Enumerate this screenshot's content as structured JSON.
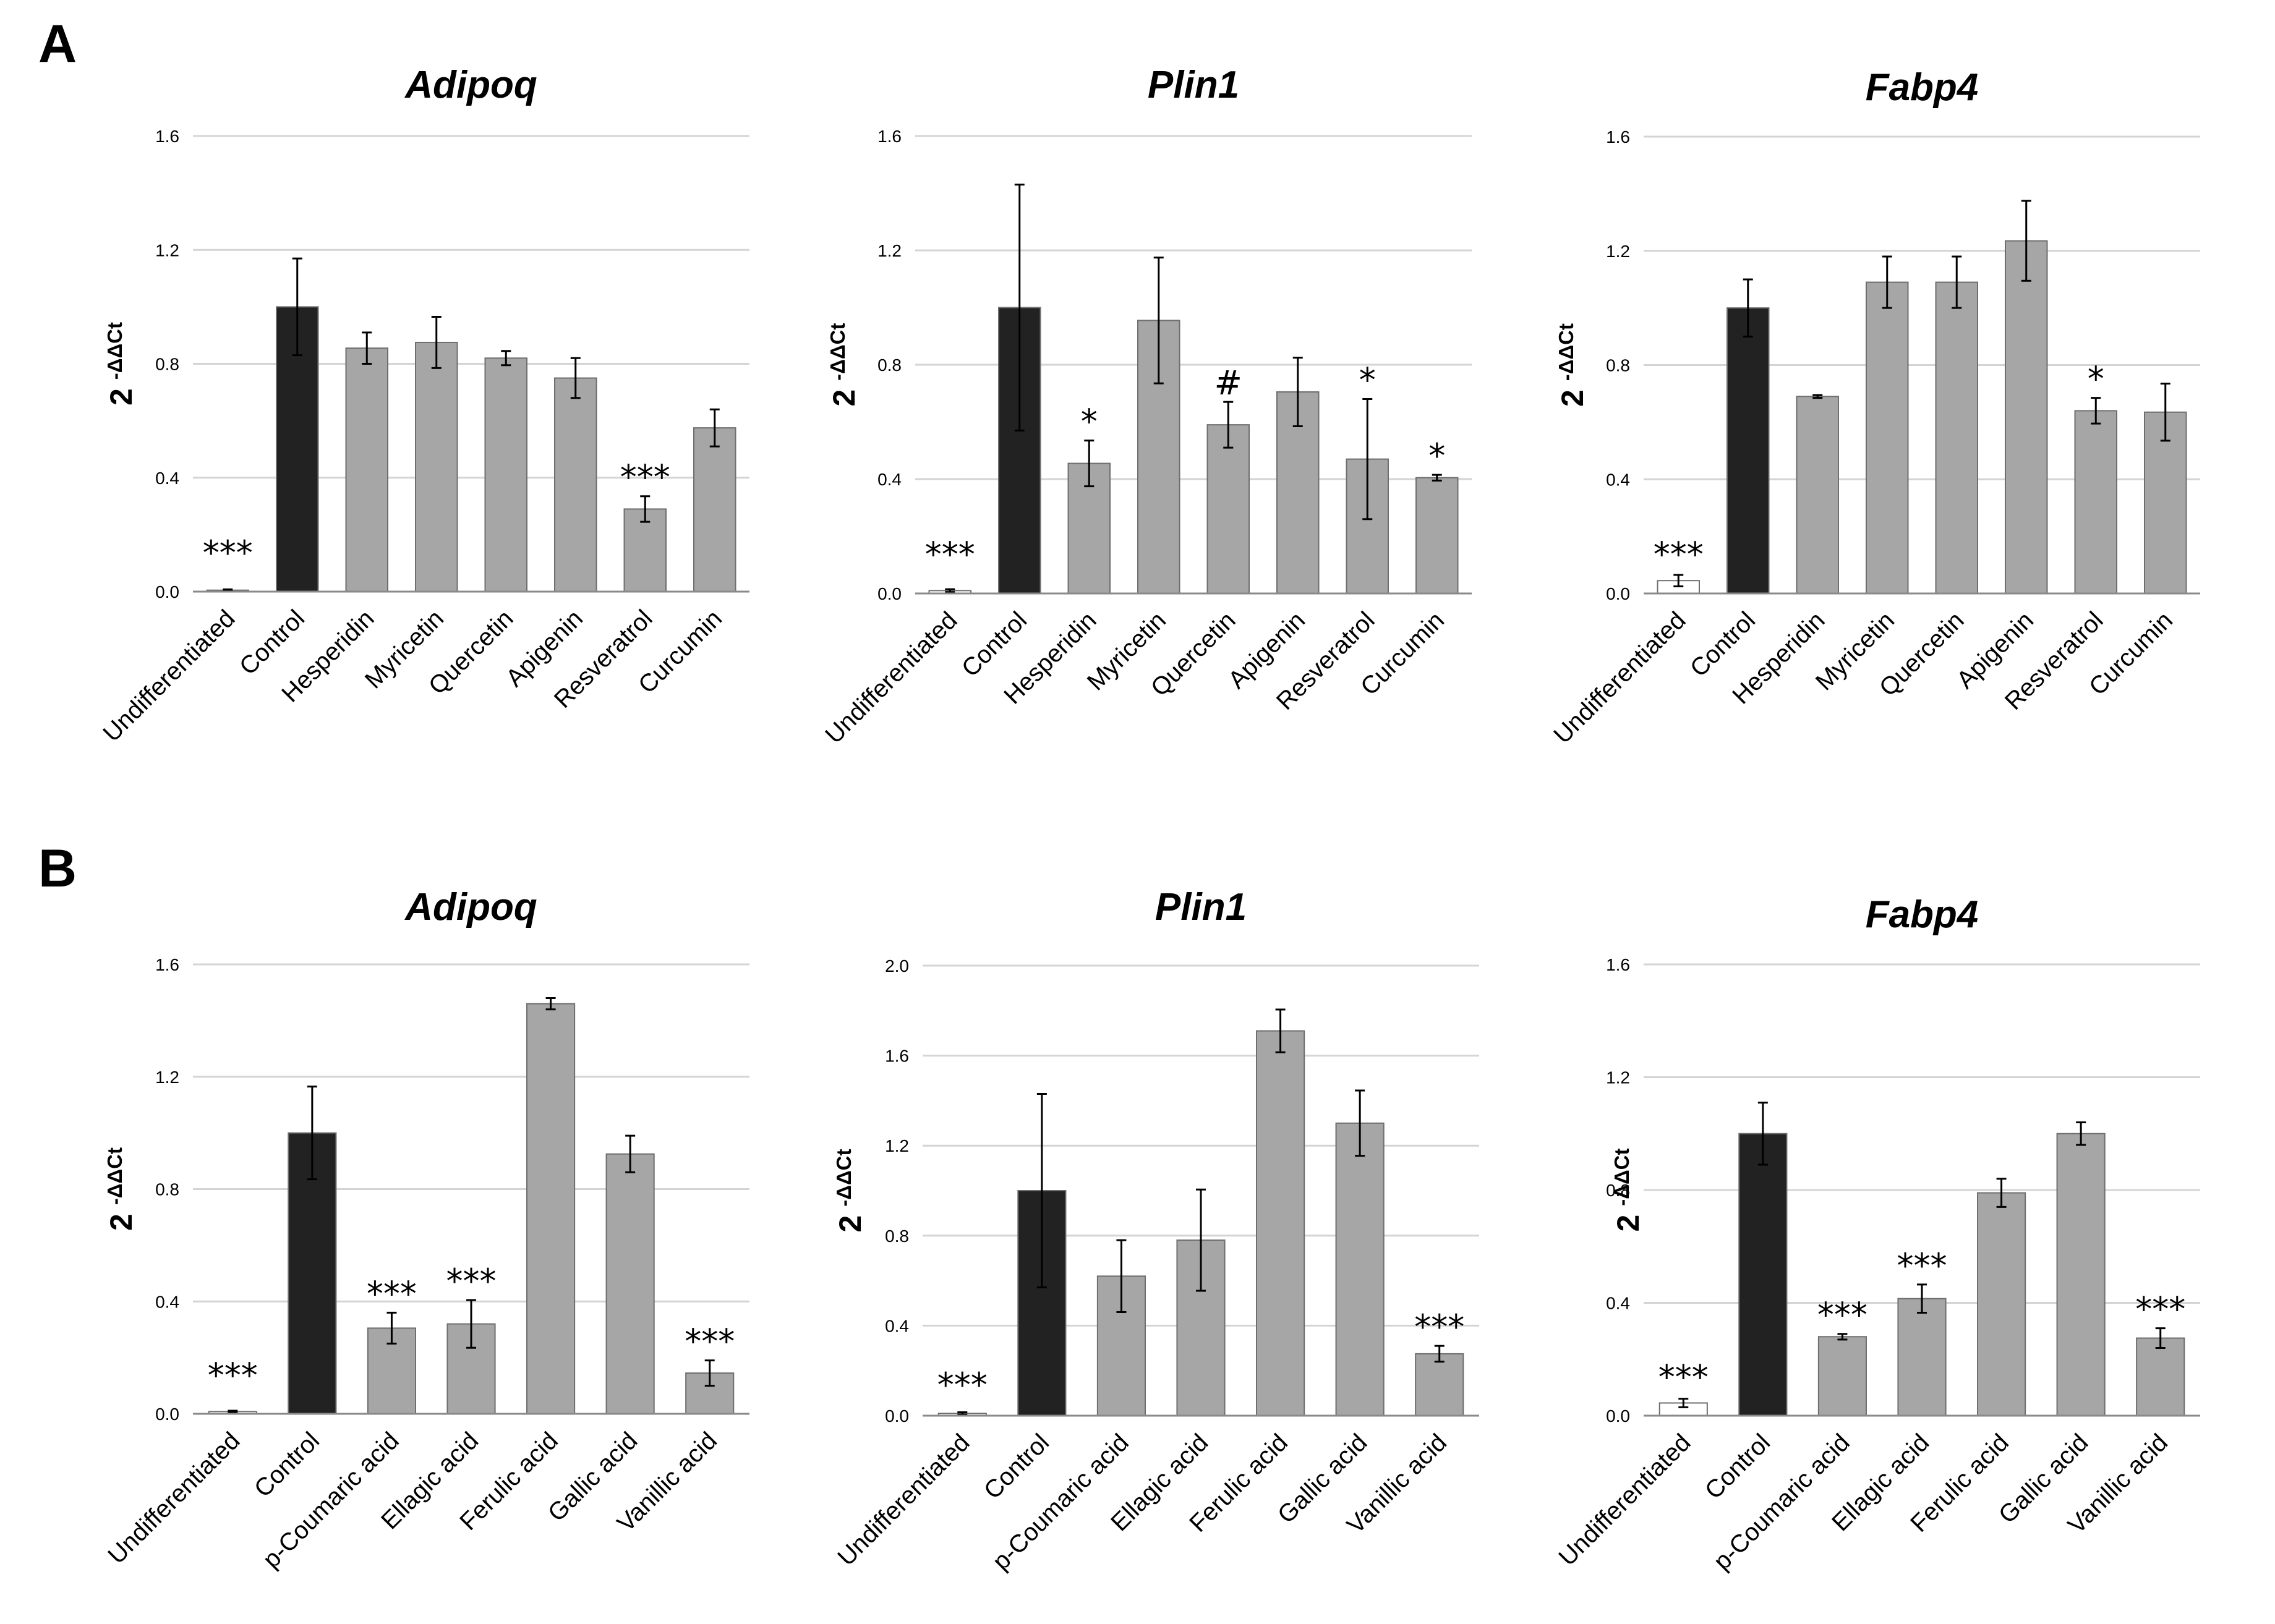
{
  "panels": [
    {
      "label": "A"
    },
    {
      "label": "B"
    }
  ],
  "chart_data": [
    {
      "type": "bar",
      "panel": "A",
      "title": "Adipoq",
      "ylabel": "2",
      "ylabel_superscript": "-ΔΔCt",
      "ylim": [
        0,
        1.6
      ],
      "yticks": [
        "0.0",
        "0.4",
        "0.8",
        "1.2",
        "1.6"
      ],
      "grid": true,
      "categories": [
        "Undifferentiated",
        "Control",
        "Hesperidin",
        "Myricetin",
        "Quercetin",
        "Apigenin",
        "Resveratrol",
        "Curcumin"
      ],
      "values": [
        0.005,
        1.0,
        0.855,
        0.875,
        0.82,
        0.75,
        0.29,
        0.575
      ],
      "errors": [
        0.003,
        0.17,
        0.055,
        0.09,
        0.025,
        0.07,
        0.045,
        0.065
      ],
      "bar_colors": [
        "#ffffff",
        "#222222",
        "#a6a6a6",
        "#a6a6a6",
        "#a6a6a6",
        "#a6a6a6",
        "#a6a6a6",
        "#a6a6a6"
      ],
      "annotations": [
        "***",
        "",
        "",
        "",
        "",
        "",
        "***",
        ""
      ]
    },
    {
      "type": "bar",
      "panel": "A",
      "title": "Plin1",
      "ylabel": "2",
      "ylabel_superscript": "-ΔΔCt",
      "ylim": [
        0,
        1.6
      ],
      "yticks": [
        "0.0",
        "0.4",
        "0.8",
        "1.2",
        "1.6"
      ],
      "grid": true,
      "categories": [
        "Undifferentiated",
        "Control",
        "Hesperidin",
        "Myricetin",
        "Quercetin",
        "Apigenin",
        "Resveratrol",
        "Curcumin"
      ],
      "values": [
        0.01,
        1.0,
        0.455,
        0.955,
        0.59,
        0.705,
        0.47,
        0.405
      ],
      "errors": [
        0.005,
        0.43,
        0.08,
        0.22,
        0.08,
        0.12,
        0.21,
        0.01
      ],
      "bar_colors": [
        "#ffffff",
        "#222222",
        "#a6a6a6",
        "#a6a6a6",
        "#a6a6a6",
        "#a6a6a6",
        "#a6a6a6",
        "#a6a6a6"
      ],
      "annotations": [
        "***",
        "",
        "*",
        "",
        "#",
        "",
        "*",
        "*"
      ]
    },
    {
      "type": "bar",
      "panel": "A",
      "title": "Fabp4",
      "ylabel": "2",
      "ylabel_superscript": "-ΔΔCt",
      "ylim": [
        0,
        1.6
      ],
      "yticks": [
        "0.0",
        "0.4",
        "0.8",
        "1.2",
        "1.6"
      ],
      "grid": true,
      "categories": [
        "Undifferentiated",
        "Control",
        "Hesperidin",
        "Myricetin",
        "Quercetin",
        "Apigenin",
        "Resveratrol",
        "Curcumin"
      ],
      "values": [
        0.045,
        1.0,
        0.69,
        1.09,
        1.09,
        1.235,
        0.64,
        0.635
      ],
      "errors": [
        0.02,
        0.1,
        0.005,
        0.09,
        0.09,
        0.14,
        0.045,
        0.1
      ],
      "bar_colors": [
        "#ffffff",
        "#222222",
        "#a6a6a6",
        "#a6a6a6",
        "#a6a6a6",
        "#a6a6a6",
        "#a6a6a6",
        "#a6a6a6"
      ],
      "annotations": [
        "***",
        "",
        "",
        "",
        "",
        "",
        "*",
        ""
      ]
    },
    {
      "type": "bar",
      "panel": "B",
      "title": "Adipoq",
      "ylabel": "2",
      "ylabel_superscript": "-ΔΔCt",
      "ylim": [
        0,
        1.6
      ],
      "yticks": [
        "0.0",
        "0.4",
        "0.8",
        "1.2",
        "1.6"
      ],
      "grid": true,
      "categories": [
        "Undifferentiated",
        "Control",
        "p-Coumaric acid",
        "Ellagic acid",
        "Ferulic acid",
        "Gallic acid",
        "Vanillic acid"
      ],
      "values": [
        0.008,
        1.0,
        0.305,
        0.32,
        1.46,
        0.925,
        0.145
      ],
      "errors": [
        0.003,
        0.165,
        0.055,
        0.085,
        0.02,
        0.065,
        0.045
      ],
      "bar_colors": [
        "#ffffff",
        "#222222",
        "#a6a6a6",
        "#a6a6a6",
        "#a6a6a6",
        "#a6a6a6",
        "#a6a6a6"
      ],
      "annotations": [
        "***",
        "",
        "***",
        "***",
        "",
        "",
        "***"
      ]
    },
    {
      "type": "bar",
      "panel": "B",
      "title": "Plin1",
      "ylabel": "2",
      "ylabel_superscript": "-ΔΔCt",
      "ylim": [
        0,
        2.0
      ],
      "yticks": [
        "0.0",
        "0.4",
        "0.8",
        "1.2",
        "1.6",
        "2.0"
      ],
      "grid": true,
      "categories": [
        "Undifferentiated",
        "Control",
        "p-Coumaric acid",
        "Ellagic acid",
        "Ferulic acid",
        "Gallic acid",
        "Vanillic acid"
      ],
      "values": [
        0.01,
        1.0,
        0.62,
        0.78,
        1.71,
        1.3,
        0.275
      ],
      "errors": [
        0.005,
        0.43,
        0.16,
        0.225,
        0.095,
        0.145,
        0.035
      ],
      "bar_colors": [
        "#ffffff",
        "#222222",
        "#a6a6a6",
        "#a6a6a6",
        "#a6a6a6",
        "#a6a6a6",
        "#a6a6a6"
      ],
      "annotations": [
        "***",
        "",
        "",
        "",
        "",
        "",
        "***"
      ]
    },
    {
      "type": "bar",
      "panel": "B",
      "title": "Fabp4",
      "ylabel": "2",
      "ylabel_superscript": "-ΔΔCt",
      "ylim": [
        0,
        1.6
      ],
      "yticks": [
        "0.0",
        "0.4",
        "0.8",
        "1.2",
        "1.6"
      ],
      "grid": true,
      "categories": [
        "Undifferentiated",
        "Control",
        "p-Coumaric acid",
        "Ellagic acid",
        "Ferulic acid",
        "Gallic acid",
        "Vanillic acid"
      ],
      "values": [
        0.045,
        1.0,
        0.28,
        0.415,
        0.79,
        1.0,
        0.275
      ],
      "errors": [
        0.015,
        0.11,
        0.01,
        0.05,
        0.05,
        0.04,
        0.035
      ],
      "bar_colors": [
        "#ffffff",
        "#222222",
        "#a6a6a6",
        "#a6a6a6",
        "#a6a6a6",
        "#a6a6a6",
        "#a6a6a6"
      ],
      "annotations": [
        "***",
        "",
        "***",
        "***",
        "",
        "",
        "***"
      ]
    }
  ]
}
